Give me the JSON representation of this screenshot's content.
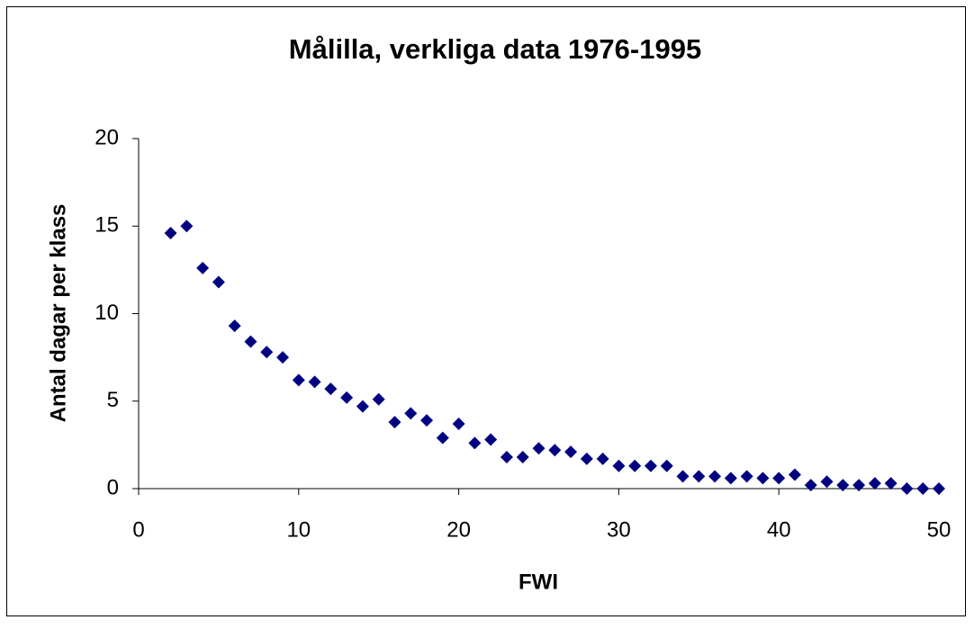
{
  "chart_data": {
    "type": "scatter",
    "title": "Målilla, verkliga data 1976-1995",
    "x_label": "FWI",
    "y_label": "Antal dagar per klass",
    "x": [
      2,
      3,
      4,
      5,
      6,
      7,
      8,
      9,
      10,
      11,
      12,
      13,
      14,
      15,
      16,
      17,
      18,
      19,
      20,
      21,
      22,
      23,
      24,
      25,
      26,
      27,
      28,
      29,
      30,
      31,
      32,
      33,
      34,
      35,
      36,
      37,
      38,
      39,
      40,
      41,
      42,
      43,
      44,
      45,
      46,
      47,
      48,
      49,
      50
    ],
    "values": [
      14.6,
      15.0,
      12.6,
      11.8,
      9.3,
      8.4,
      7.8,
      7.5,
      6.2,
      6.1,
      5.7,
      5.2,
      4.7,
      5.1,
      3.8,
      4.3,
      3.9,
      2.9,
      3.7,
      2.6,
      2.8,
      1.8,
      1.8,
      2.3,
      2.2,
      2.1,
      1.7,
      1.7,
      1.3,
      1.3,
      1.3,
      1.3,
      0.7,
      0.7,
      0.7,
      0.6,
      0.7,
      0.6,
      0.6,
      0.8,
      0.2,
      0.4,
      0.2,
      0.2,
      0.3,
      0.3,
      0.0,
      0.0,
      0.0
    ],
    "color": "#000080",
    "xlim": [
      0,
      50
    ],
    "xticks": [
      0,
      10,
      20,
      30,
      40,
      50
    ],
    "ylim": [
      0,
      20
    ],
    "yticks": [
      0,
      5,
      10,
      15,
      20
    ],
    "grid": false
  }
}
